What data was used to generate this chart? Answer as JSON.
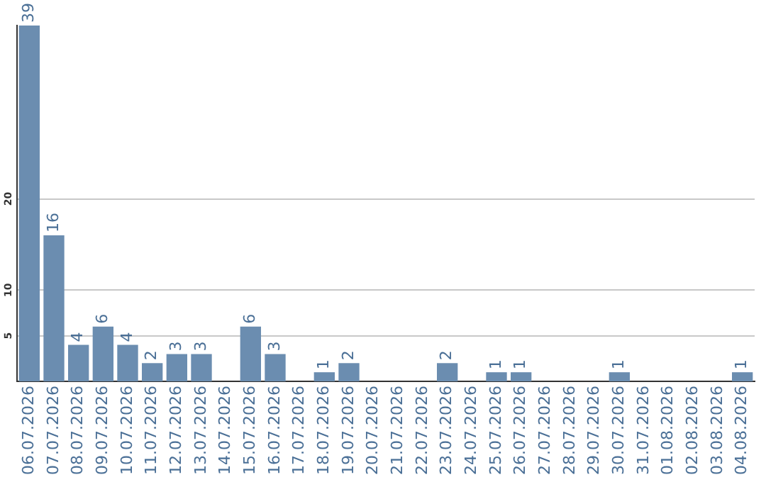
{
  "chart_data": {
    "type": "bar",
    "categories": [
      "06.07.2026",
      "07.07.2026",
      "08.07.2026",
      "09.07.2026",
      "10.07.2026",
      "11.07.2026",
      "12.07.2026",
      "13.07.2026",
      "14.07.2026",
      "15.07.2026",
      "16.07.2026",
      "17.07.2026",
      "18.07.2026",
      "19.07.2026",
      "20.07.2026",
      "21.07.2026",
      "22.07.2026",
      "23.07.2026",
      "24.07.2026",
      "25.07.2026",
      "26.07.2026",
      "27.07.2026",
      "28.07.2026",
      "29.07.2026",
      "30.07.2026",
      "31.07.2026",
      "01.08.2026",
      "02.08.2026",
      "03.08.2026",
      "04.08.2026"
    ],
    "values": [
      39,
      16,
      4,
      6,
      4,
      2,
      3,
      3,
      0,
      6,
      3,
      0,
      1,
      2,
      0,
      0,
      0,
      2,
      0,
      1,
      1,
      0,
      0,
      0,
      1,
      0,
      0,
      0,
      0,
      1
    ],
    "value_labels": [
      "39",
      "16",
      "4",
      "6",
      "4",
      "2",
      "3",
      "3",
      null,
      "6",
      "3",
      null,
      "1",
      "2",
      null,
      null,
      null,
      "2",
      null,
      "1",
      "1",
      null,
      null,
      null,
      "1",
      null,
      null,
      null,
      null,
      "1"
    ],
    "color": "#6b8db0",
    "ylim": [
      0,
      39
    ],
    "yticks": [
      5,
      10,
      20
    ],
    "grid": "y",
    "legend": false
  }
}
